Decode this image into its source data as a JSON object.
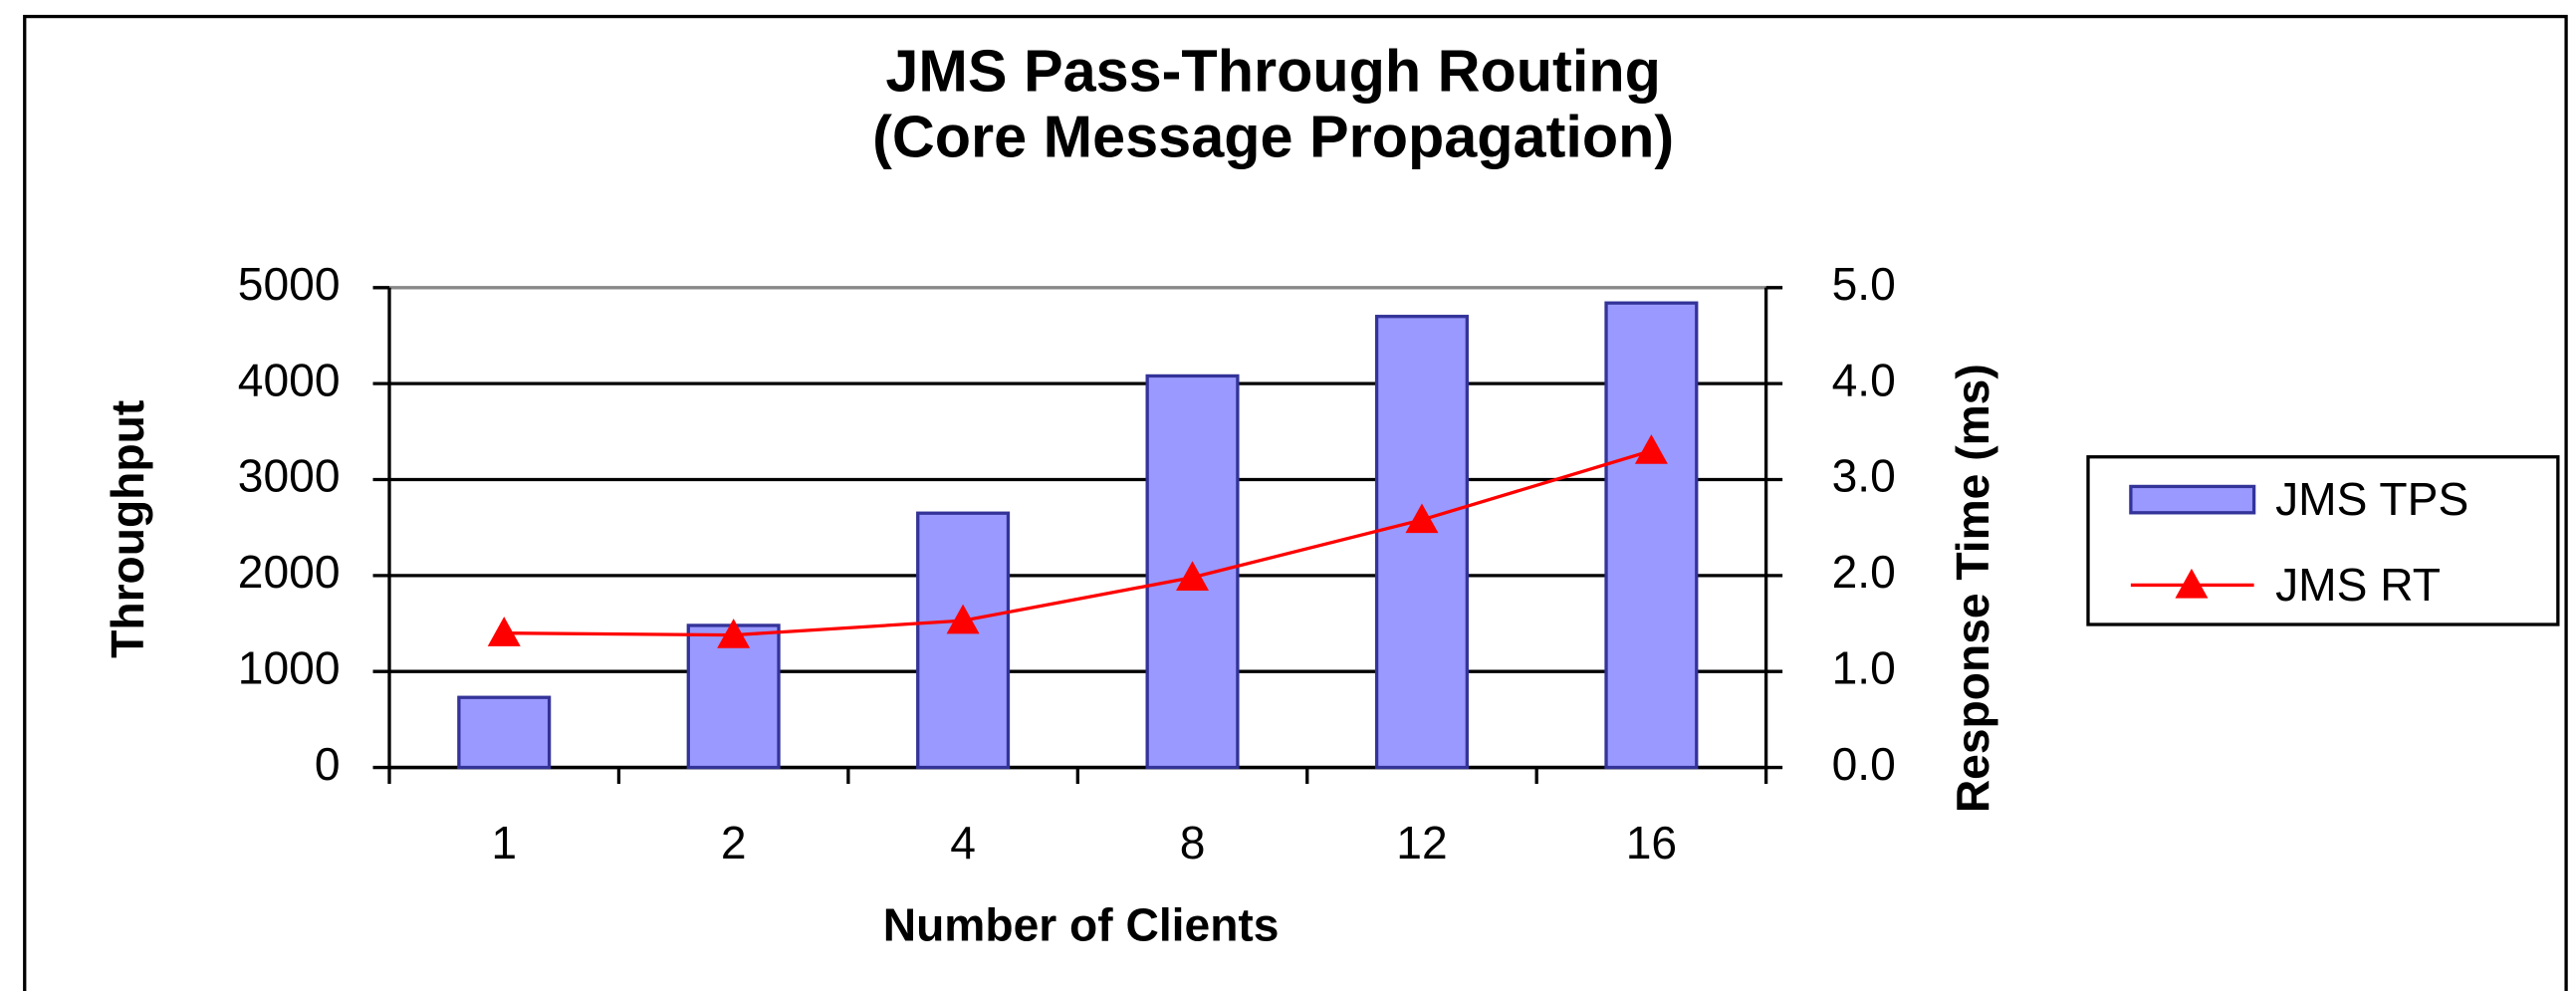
{
  "chart_data": {
    "type": "bar",
    "title": [
      "JMS Pass-Through Routing",
      "(Core Message Propagation)"
    ],
    "x_label": "Number of Clients",
    "y_label": "Throughput",
    "y2_label": "Response Time (ms)",
    "categories": [
      "1",
      "2",
      "4",
      "8",
      "12",
      "16"
    ],
    "series": [
      {
        "name": "JMS TPS",
        "type": "bar",
        "color": "#9999ff",
        "values": [
          730,
          1480,
          2650,
          4080,
          4700,
          4840
        ]
      },
      {
        "name": "JMS RT",
        "type": "line",
        "axis": "y2",
        "color": "#ff0000",
        "values": [
          1.4,
          1.38,
          1.53,
          1.98,
          2.58,
          3.3
        ]
      }
    ],
    "ylim": [
      0,
      5000
    ],
    "yticks": [
      0,
      1000,
      2000,
      3000,
      4000,
      5000
    ],
    "y2lim": [
      0,
      5
    ],
    "y2ticks": [
      {
        "value": 0,
        "label": "0.0"
      },
      {
        "value": 1,
        "label": "1.0"
      },
      {
        "value": 2,
        "label": "2.0"
      },
      {
        "value": 3,
        "label": "3.0"
      },
      {
        "value": 4,
        "label": "4.0"
      },
      {
        "value": 5,
        "label": "5.0"
      }
    ],
    "grid": true,
    "legend": "right"
  }
}
